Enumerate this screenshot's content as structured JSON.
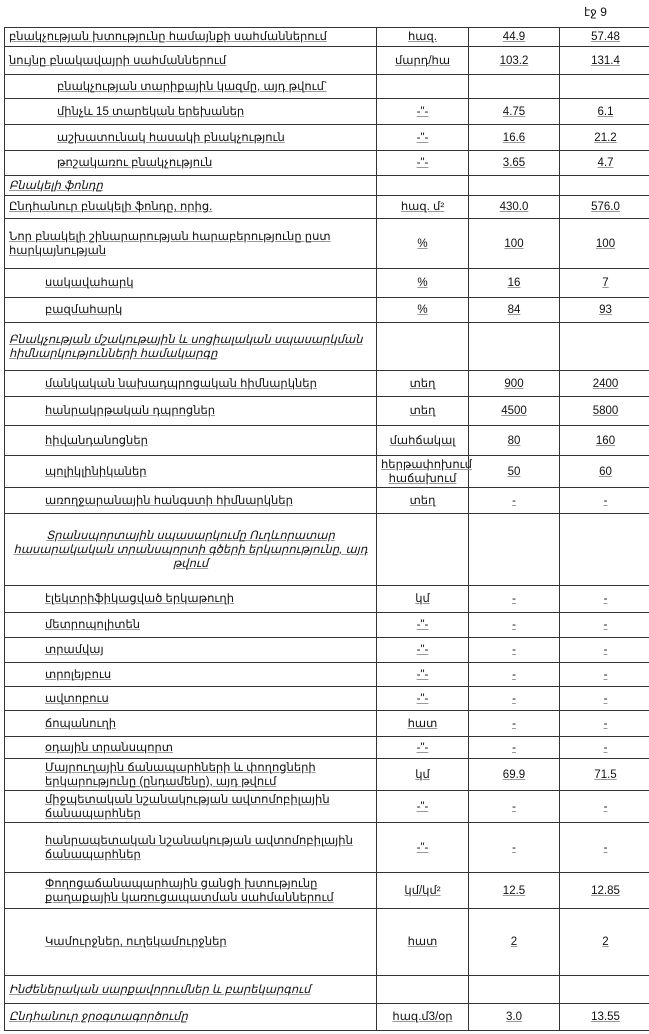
{
  "page_label": "էջ 9",
  "rows": [
    {
      "label": "բնակչության խտությունը համայնքի սահմաններում",
      "unit": "հազ.",
      "v1": "44.9",
      "v2": "57.48",
      "style": "",
      "h": 19
    },
    {
      "label": "նույնը բնակավայրի սահմաններում",
      "unit": "մարդ/հա",
      "v1": "103.2",
      "v2": "131.4",
      "style": "",
      "h": 28
    },
    {
      "label": "բնակչության տարիքային կազմը, այդ թվում՝",
      "unit": "",
      "v1": "",
      "v2": "",
      "style": "ind",
      "h": 24
    },
    {
      "label": "մինչև 15 տարեկան երեխաներ",
      "unit": "-\"-",
      "v1": "4.75",
      "v2": "6.1",
      "style": "ind",
      "h": 26
    },
    {
      "label": "աշխատունակ հասակի բնակչություն",
      "unit": "-\"-",
      "v1": "16.6",
      "v2": "21.2",
      "style": "ind",
      "h": 26
    },
    {
      "label": "թոշակառու բնակչություն",
      "unit": "-\"-",
      "v1": "3.65",
      "v2": "4.7",
      "style": "ind",
      "h": 25
    },
    {
      "label": "Բնակելի ֆոնդը",
      "unit": "",
      "v1": "",
      "v2": "",
      "style": "sec",
      "h": 20
    },
    {
      "label": "Ընդհանուր բնակելի ֆոնդը, որից.",
      "unit": "հազ. մ²",
      "v1": "430.0",
      "v2": "576.0",
      "style": "",
      "h": 23
    },
    {
      "label": "Նոր բնակելի շինարարության հարաբերությունը ըստ հարկայնության",
      "unit": "%",
      "v1": "100",
      "v2": "100",
      "style": "",
      "h": 50
    },
    {
      "label": "սակավահարկ",
      "unit": "%",
      "v1": "16",
      "v2": "7",
      "style": "ind2",
      "h": 29
    },
    {
      "label": "բազմահարկ",
      "unit": "%",
      "v1": "84",
      "v2": "93",
      "style": "ind2",
      "h": 25
    },
    {
      "label": "Բնակչության մշակութային և սոցիալական սպասարկման հիմնարկությունների համակարգը",
      "unit": "",
      "v1": "",
      "v2": "",
      "style": "sec",
      "h": 48
    },
    {
      "label": "մանկական նախադպրոցական հիմնարկներ",
      "unit": "տեղ",
      "v1": "900",
      "v2": "2400",
      "style": "ind2",
      "h": 26
    },
    {
      "label": "հանրակրթական դպրոցներ",
      "unit": "տեղ",
      "v1": "4500",
      "v2": "5800",
      "style": "ind2",
      "h": 29
    },
    {
      "label": "հիվանդանոցներ",
      "unit": "մահճակալ",
      "v1": "80",
      "v2": "160",
      "style": "ind2",
      "h": 30
    },
    {
      "label": "պոլիկլինիկաներ",
      "unit": "հերթափոխում հաճախում",
      "v1": "50",
      "v2": "60",
      "style": "ind2",
      "h": 32
    },
    {
      "label": "առողջարանային հանգստի հիմնարկներ",
      "unit": "տեղ",
      "v1": "-",
      "v2": "-",
      "style": "ind2",
      "h": 26
    },
    {
      "label": "Տրանսպորտային սպասարկումը Ուղևորատար հասարակական տրանսպորտի գծերի երկարությունը, այդ թվում",
      "unit": "",
      "v1": "",
      "v2": "",
      "style": "center",
      "h": 72
    },
    {
      "label": "էլեկտրիֆիկացված երկաթուղի",
      "unit": "կմ",
      "v1": "-",
      "v2": "-",
      "style": "ind2",
      "h": 27
    },
    {
      "label": "մետրոպոլիտեն",
      "unit": "-\"-",
      "v1": "-",
      "v2": "-",
      "style": "ind2",
      "h": 25
    },
    {
      "label": "տրամվայ",
      "unit": "-\"-",
      "v1": "-",
      "v2": "-",
      "style": "ind2",
      "h": 25
    },
    {
      "label": "տրոլեյբուս",
      "unit": "-\"-",
      "v1": "-",
      "v2": "-",
      "style": "ind2",
      "h": 24
    },
    {
      "label": "ավտոբուս",
      "unit": "-\"-",
      "v1": "-",
      "v2": "-",
      "style": "ind2",
      "h": 24
    },
    {
      "label": "ճոպանուղի",
      "unit": "հատ",
      "v1": "-",
      "v2": "-",
      "style": "ind2",
      "h": 26
    },
    {
      "label": "օդային տրանսպորտ",
      "unit": "-\"-",
      "v1": "-",
      "v2": "-",
      "style": "ind2",
      "h": 22
    },
    {
      "label": "Մայրուղային ճանապարհների և փողոցների երկարությունը (ընդամենը), այդ թվում",
      "unit": "կմ",
      "v1": "69.9",
      "v2": "71.5",
      "style": "ind2",
      "h": 32
    },
    {
      "label": "միջպետական նշանակության ավտոմոբիլային ճանապարհներ",
      "unit": "-\"-",
      "v1": "-",
      "v2": "-",
      "style": "ind2",
      "h": 32
    },
    {
      "label": "հանրապետական նշանակության ավտոմոբիլային ճանապարհներ",
      "unit": "-\"-",
      "v1": "-",
      "v2": "-",
      "style": "ind2",
      "h": 50
    },
    {
      "label": "Փողոցաճանապարհային ցանցի խտությունը քաղաքային կառուցապատման սահմաններում",
      "unit": "կմ/կմ²",
      "v1": "12.5",
      "v2": "12.85",
      "style": "ind2",
      "h": 36
    },
    {
      "label": "Կամուրջներ, ուղեկամուրջներ",
      "unit": "հատ",
      "v1": "2",
      "v2": "2",
      "style": "ind2",
      "h": 67
    },
    {
      "label": "Ինժեներական սարքավորումներ և բարեկարգում",
      "unit": "",
      "v1": "",
      "v2": "",
      "style": "sec",
      "h": 28
    },
    {
      "label": "Ընդհանուր ջրօգտագործումը",
      "unit": "հազ.մ3/օր",
      "v1": "3.0",
      "v2": "13.55",
      "style": "sec",
      "h": 27
    }
  ]
}
